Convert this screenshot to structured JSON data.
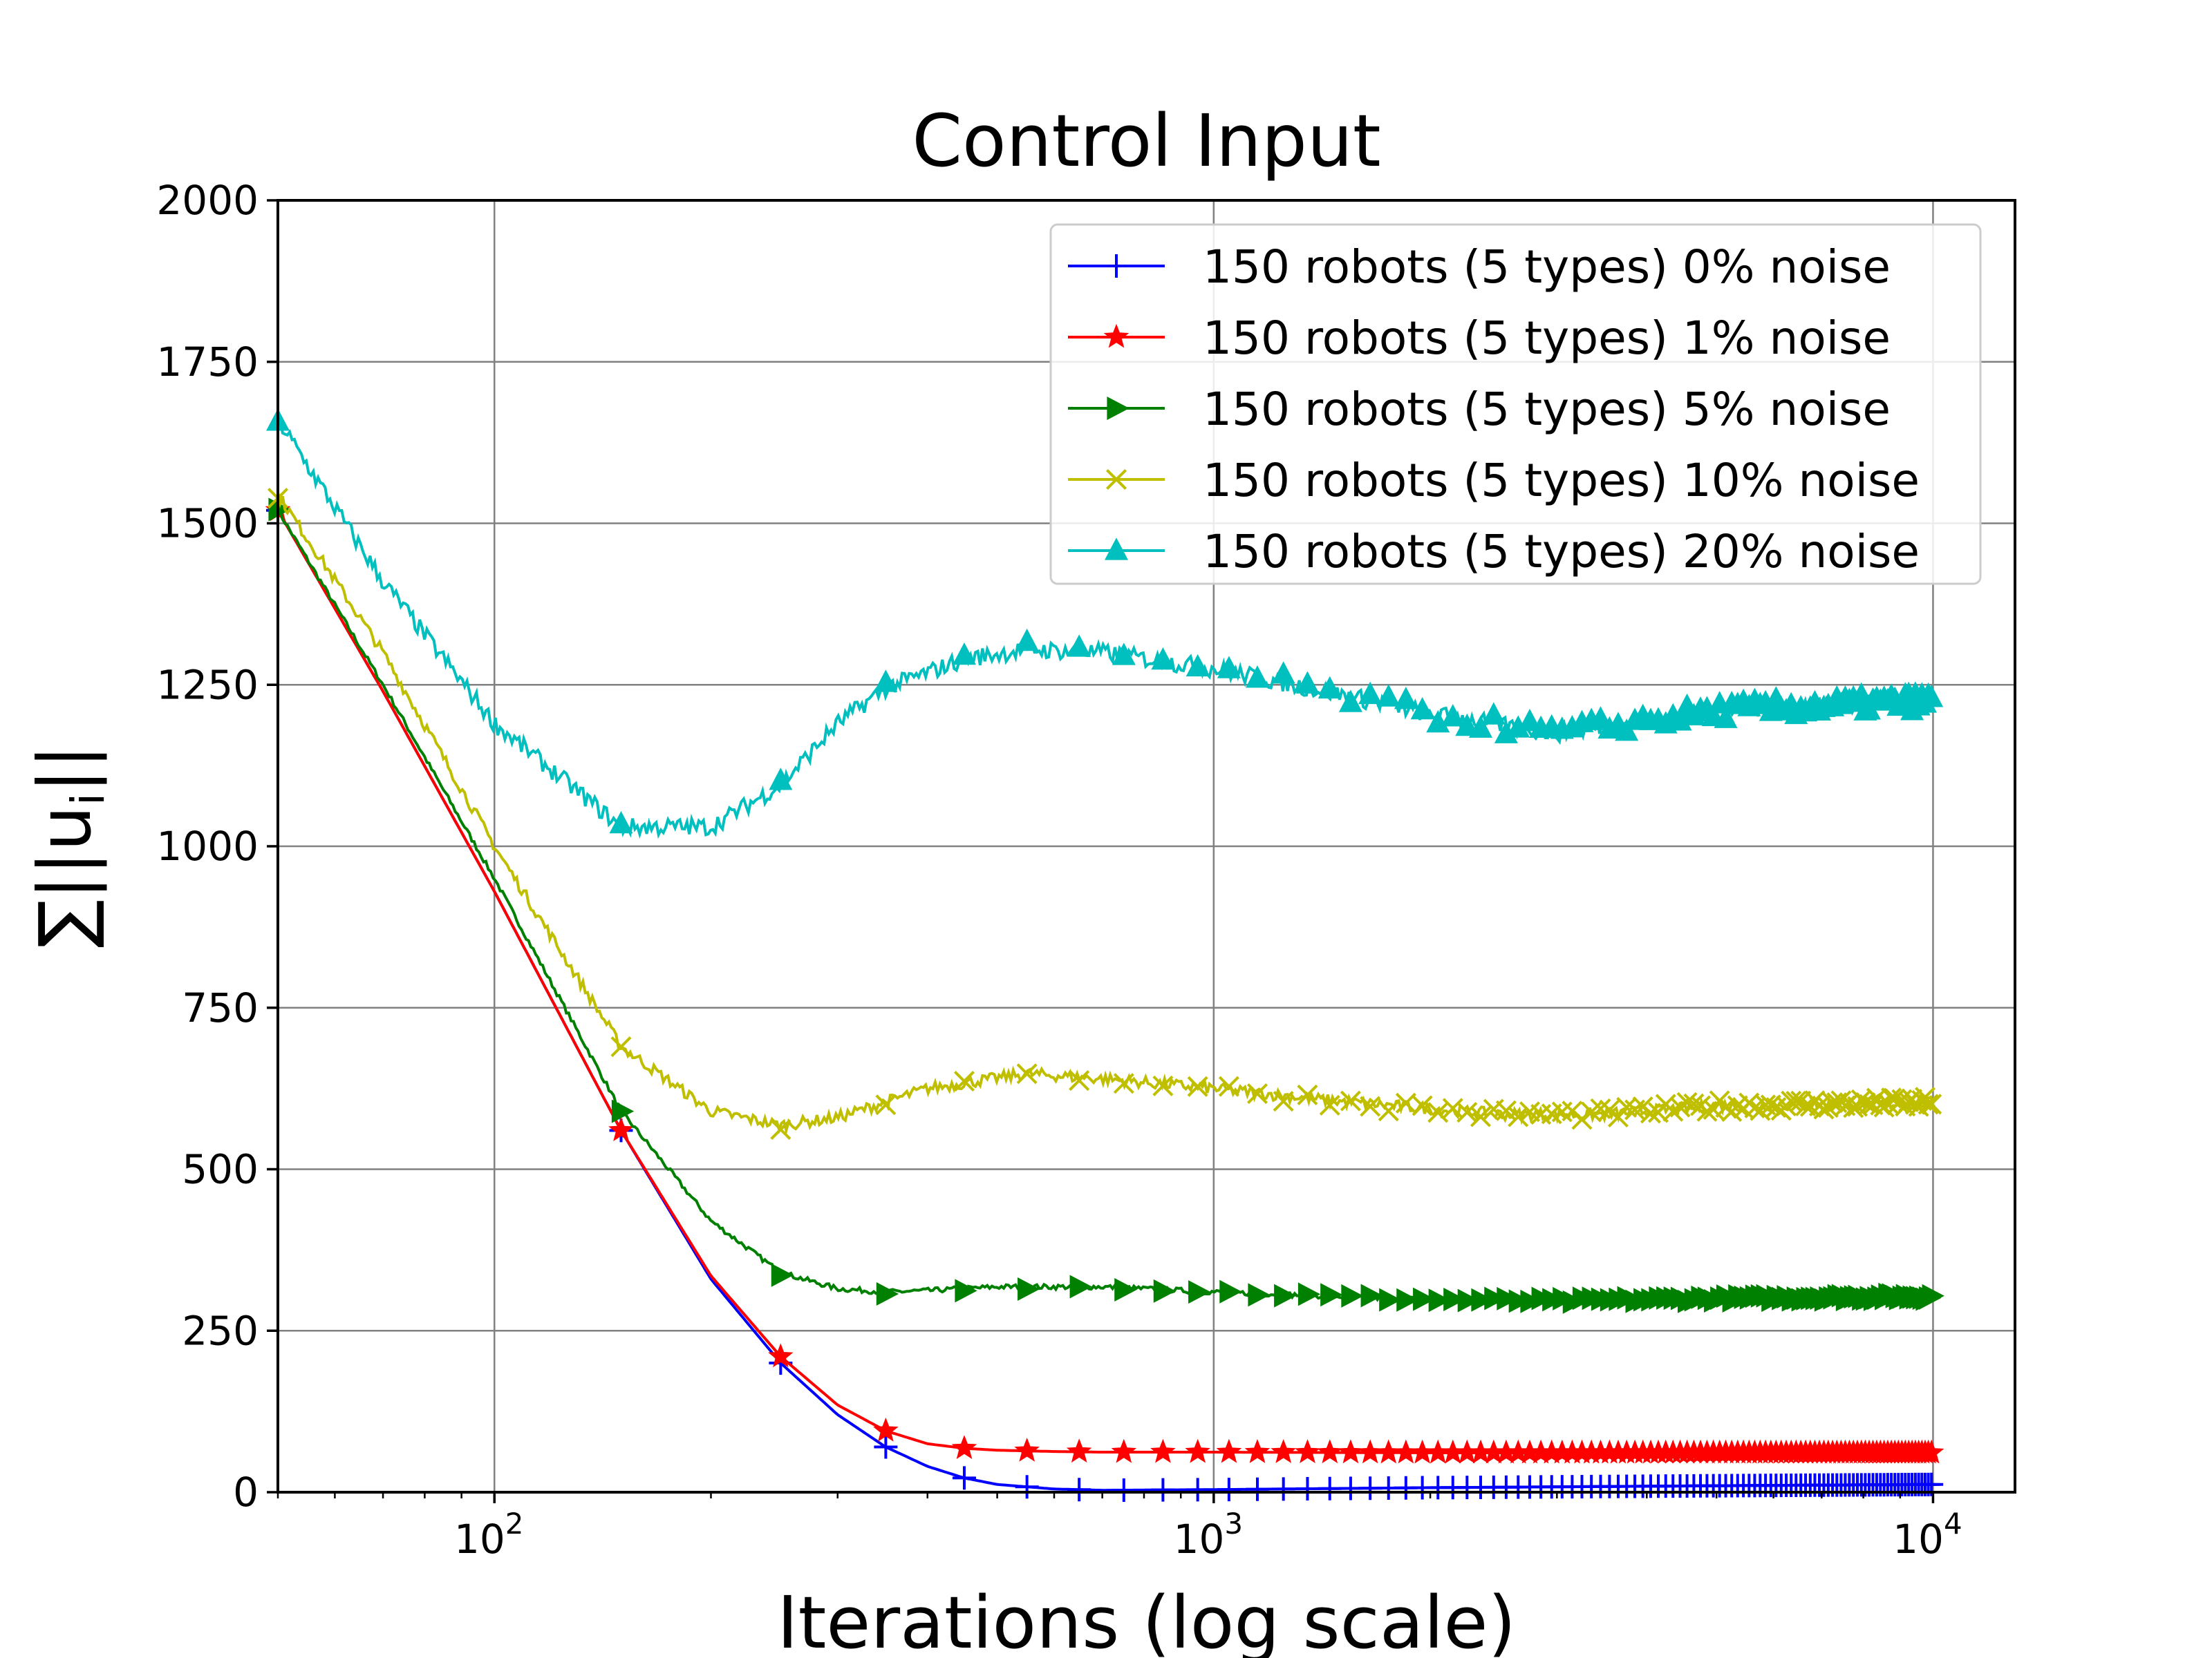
{
  "chart_data": {
    "type": "line",
    "title": "Control Input",
    "xlabel": "Iterations (log scale)",
    "ylabel": "∑||u_i||",
    "x_scale": "log",
    "xlim": [
      50,
      13000
    ],
    "ylim": [
      0,
      2000
    ],
    "x_ticks": [
      {
        "value": 100,
        "base": "10",
        "exp": "2"
      },
      {
        "value": 1000,
        "base": "10",
        "exp": "3"
      },
      {
        "value": 10000,
        "base": "10",
        "exp": "4"
      }
    ],
    "y_ticks": [
      {
        "value": 0,
        "label": "0"
      },
      {
        "value": 250,
        "label": "250"
      },
      {
        "value": 500,
        "label": "500"
      },
      {
        "value": 750,
        "label": "750"
      },
      {
        "value": 1000,
        "label": "1000"
      },
      {
        "value": 1250,
        "label": "1250"
      },
      {
        "value": 1500,
        "label": "1500"
      },
      {
        "value": 1750,
        "label": "1750"
      },
      {
        "value": 2000,
        "label": "2000"
      }
    ],
    "grid": true,
    "legend_position": "top-right",
    "series": [
      {
        "name": "150 robots (5 types) 0% noise",
        "color": "#0000ff",
        "marker": "plus",
        "noise": 0,
        "x": [
          50,
          70,
          100,
          150,
          200,
          250,
          300,
          350,
          400,
          450,
          500,
          600,
          700,
          1000,
          2000,
          5000,
          10000
        ],
        "y": [
          1520,
          1240,
          930,
          560,
          330,
          200,
          120,
          70,
          40,
          22,
          12,
          5,
          3,
          4,
          7,
          10,
          12
        ]
      },
      {
        "name": "150 robots (5 types) 1% noise",
        "color": "#ff0000",
        "marker": "star",
        "noise": 0,
        "x": [
          50,
          70,
          100,
          150,
          200,
          250,
          300,
          350,
          400,
          450,
          500,
          600,
          700,
          1000,
          2000,
          5000,
          10000
        ],
        "y": [
          1520,
          1240,
          930,
          560,
          335,
          210,
          135,
          95,
          75,
          68,
          65,
          63,
          62,
          62,
          61,
          61,
          61
        ]
      },
      {
        "name": "150 robots (5 types) 5% noise",
        "color": "#008000",
        "marker": "triangle-right",
        "noise": 4,
        "x": [
          50,
          70,
          100,
          150,
          200,
          250,
          300,
          350,
          400,
          500,
          700,
          1000,
          2000,
          3000,
          5000,
          10000
        ],
        "y": [
          1520,
          1250,
          950,
          590,
          420,
          340,
          315,
          310,
          312,
          318,
          318,
          310,
          298,
          296,
          300,
          303
        ]
      },
      {
        "name": "150 robots (5 types) 10% noise",
        "color": "#bfbf00",
        "marker": "x",
        "noise": 9,
        "x": [
          50,
          70,
          100,
          150,
          200,
          250,
          300,
          400,
          550,
          700,
          1000,
          1500,
          2500,
          3500,
          5000,
          10000
        ],
        "y": [
          1545,
          1300,
          1000,
          690,
          590,
          568,
          580,
          625,
          648,
          640,
          625,
          605,
          585,
          585,
          598,
          603
        ]
      },
      {
        "name": "150 robots (5 types) 20% noise",
        "color": "#00bfbf",
        "marker": "triangle-up",
        "noise": 14,
        "x": [
          50,
          70,
          100,
          150,
          200,
          250,
          300,
          350,
          450,
          550,
          700,
          1000,
          1500,
          2000,
          3000,
          5000,
          10000
        ],
        "y": [
          1660,
          1410,
          1190,
          1030,
          1030,
          1095,
          1190,
          1245,
          1290,
          1305,
          1300,
          1275,
          1235,
          1205,
          1175,
          1210,
          1225
        ]
      }
    ]
  }
}
